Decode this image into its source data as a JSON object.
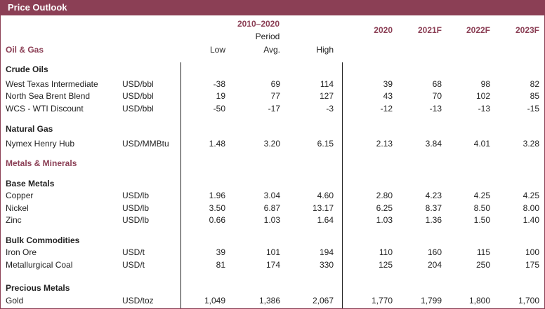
{
  "header": {
    "title": "Price Outlook"
  },
  "table": {
    "period_label": "2010–2020",
    "period_sublabel": "Period",
    "section": "Oil & Gas",
    "columns": [
      "Low",
      "Avg.",
      "High",
      "2020",
      "2021F",
      "2022F",
      "2023F"
    ],
    "rows": [
      {
        "heading": "Crude Oils"
      },
      {
        "label": "West Texas Intermediate",
        "unit": "USD/bbl",
        "values": [
          "-38",
          "69",
          "114",
          "39",
          "68",
          "98",
          "82"
        ]
      },
      {
        "label": "North Sea Brent Blend",
        "unit": "USD/bbl",
        "values": [
          "19",
          "77",
          "127",
          "43",
          "70",
          "102",
          "85"
        ]
      },
      {
        "label": "WCS - WTI Discount",
        "unit": "USD/bbl",
        "values": [
          "-50",
          "-17",
          "-3",
          "-12",
          "-13",
          "-13",
          "-15"
        ]
      },
      {
        "heading": "Natural Gas"
      },
      {
        "label": "Nymex Henry Hub",
        "unit": "USD/MMBtu",
        "values": [
          "1.48",
          "3.20",
          "6.15",
          "2.13",
          "3.84",
          "4.01",
          "3.28"
        ]
      },
      {
        "section": "Metals & Minerals"
      },
      {
        "heading": "Base Metals"
      },
      {
        "label": "Copper",
        "unit": "USD/lb",
        "values": [
          "1.96",
          "3.04",
          "4.60",
          "2.80",
          "4.23",
          "4.25",
          "4.25"
        ]
      },
      {
        "label": "Nickel",
        "unit": "USD/lb",
        "values": [
          "3.50",
          "6.87",
          "13.17",
          "6.25",
          "8.37",
          "8.50",
          "8.00"
        ]
      },
      {
        "label": "Zinc",
        "unit": "USD/lb",
        "values": [
          "0.66",
          "1.03",
          "1.64",
          "1.03",
          "1.36",
          "1.50",
          "1.40"
        ]
      },
      {
        "heading": "Bulk Commodities"
      },
      {
        "label": "Iron Ore",
        "unit": "USD/t",
        "values": [
          "39",
          "101",
          "194",
          "110",
          "160",
          "115",
          "100"
        ]
      },
      {
        "label": "Metallurgical Coal",
        "unit": "USD/t",
        "values": [
          "81",
          "174",
          "330",
          "125",
          "204",
          "250",
          "175"
        ]
      },
      {
        "heading": "Precious Metals"
      },
      {
        "label": "Gold",
        "unit": "USD/toz",
        "values": [
          "1,049",
          "1,386",
          "2,067",
          "1,770",
          "1,799",
          "1,800",
          "1,700"
        ]
      }
    ]
  }
}
